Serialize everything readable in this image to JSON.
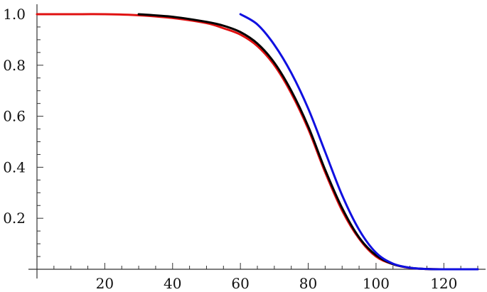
{
  "chart_data": {
    "type": "line",
    "title": "",
    "xlabel": "",
    "ylabel": "",
    "xlim": [
      0,
      130
    ],
    "ylim": [
      0,
      1.05
    ],
    "x_ticks": [
      "20",
      "40",
      "60",
      "80",
      "100",
      "120"
    ],
    "y_ticks": [
      "0.2",
      "0.4",
      "0.6",
      "0.8",
      "1.0"
    ],
    "grid": false,
    "series": [
      {
        "color": "#e01010",
        "points": [
          [
            0,
            1.0
          ],
          [
            10,
            1.0
          ],
          [
            20,
            1.0
          ],
          [
            30,
            0.996
          ],
          [
            40,
            0.985
          ],
          [
            50,
            0.965
          ],
          [
            55,
            0.945
          ],
          [
            60,
            0.92
          ],
          [
            65,
            0.875
          ],
          [
            70,
            0.8
          ],
          [
            75,
            0.69
          ],
          [
            80,
            0.55
          ],
          [
            85,
            0.38
          ],
          [
            90,
            0.23
          ],
          [
            95,
            0.12
          ],
          [
            100,
            0.05
          ],
          [
            105,
            0.02
          ],
          [
            110,
            0.005
          ],
          [
            115,
            0.001
          ],
          [
            120,
            0.0
          ],
          [
            130,
            0.0
          ]
        ]
      },
      {
        "color": "#000000",
        "points": [
          [
            30,
            1.0
          ],
          [
            40,
            0.99
          ],
          [
            50,
            0.97
          ],
          [
            55,
            0.955
          ],
          [
            60,
            0.93
          ],
          [
            65,
            0.885
          ],
          [
            70,
            0.81
          ],
          [
            75,
            0.7
          ],
          [
            80,
            0.56
          ],
          [
            85,
            0.39
          ],
          [
            90,
            0.24
          ],
          [
            95,
            0.125
          ],
          [
            100,
            0.055
          ],
          [
            105,
            0.02
          ],
          [
            110,
            0.006
          ],
          [
            115,
            0.001
          ],
          [
            120,
            0.0
          ]
        ]
      },
      {
        "color": "#1010e0",
        "points": [
          [
            60,
            1.0
          ],
          [
            65,
            0.96
          ],
          [
            70,
            0.88
          ],
          [
            75,
            0.77
          ],
          [
            80,
            0.63
          ],
          [
            85,
            0.46
          ],
          [
            90,
            0.29
          ],
          [
            95,
            0.155
          ],
          [
            100,
            0.065
          ],
          [
            105,
            0.022
          ],
          [
            110,
            0.006
          ],
          [
            115,
            0.001
          ],
          [
            120,
            0.0
          ],
          [
            130,
            0.0
          ]
        ]
      }
    ]
  }
}
